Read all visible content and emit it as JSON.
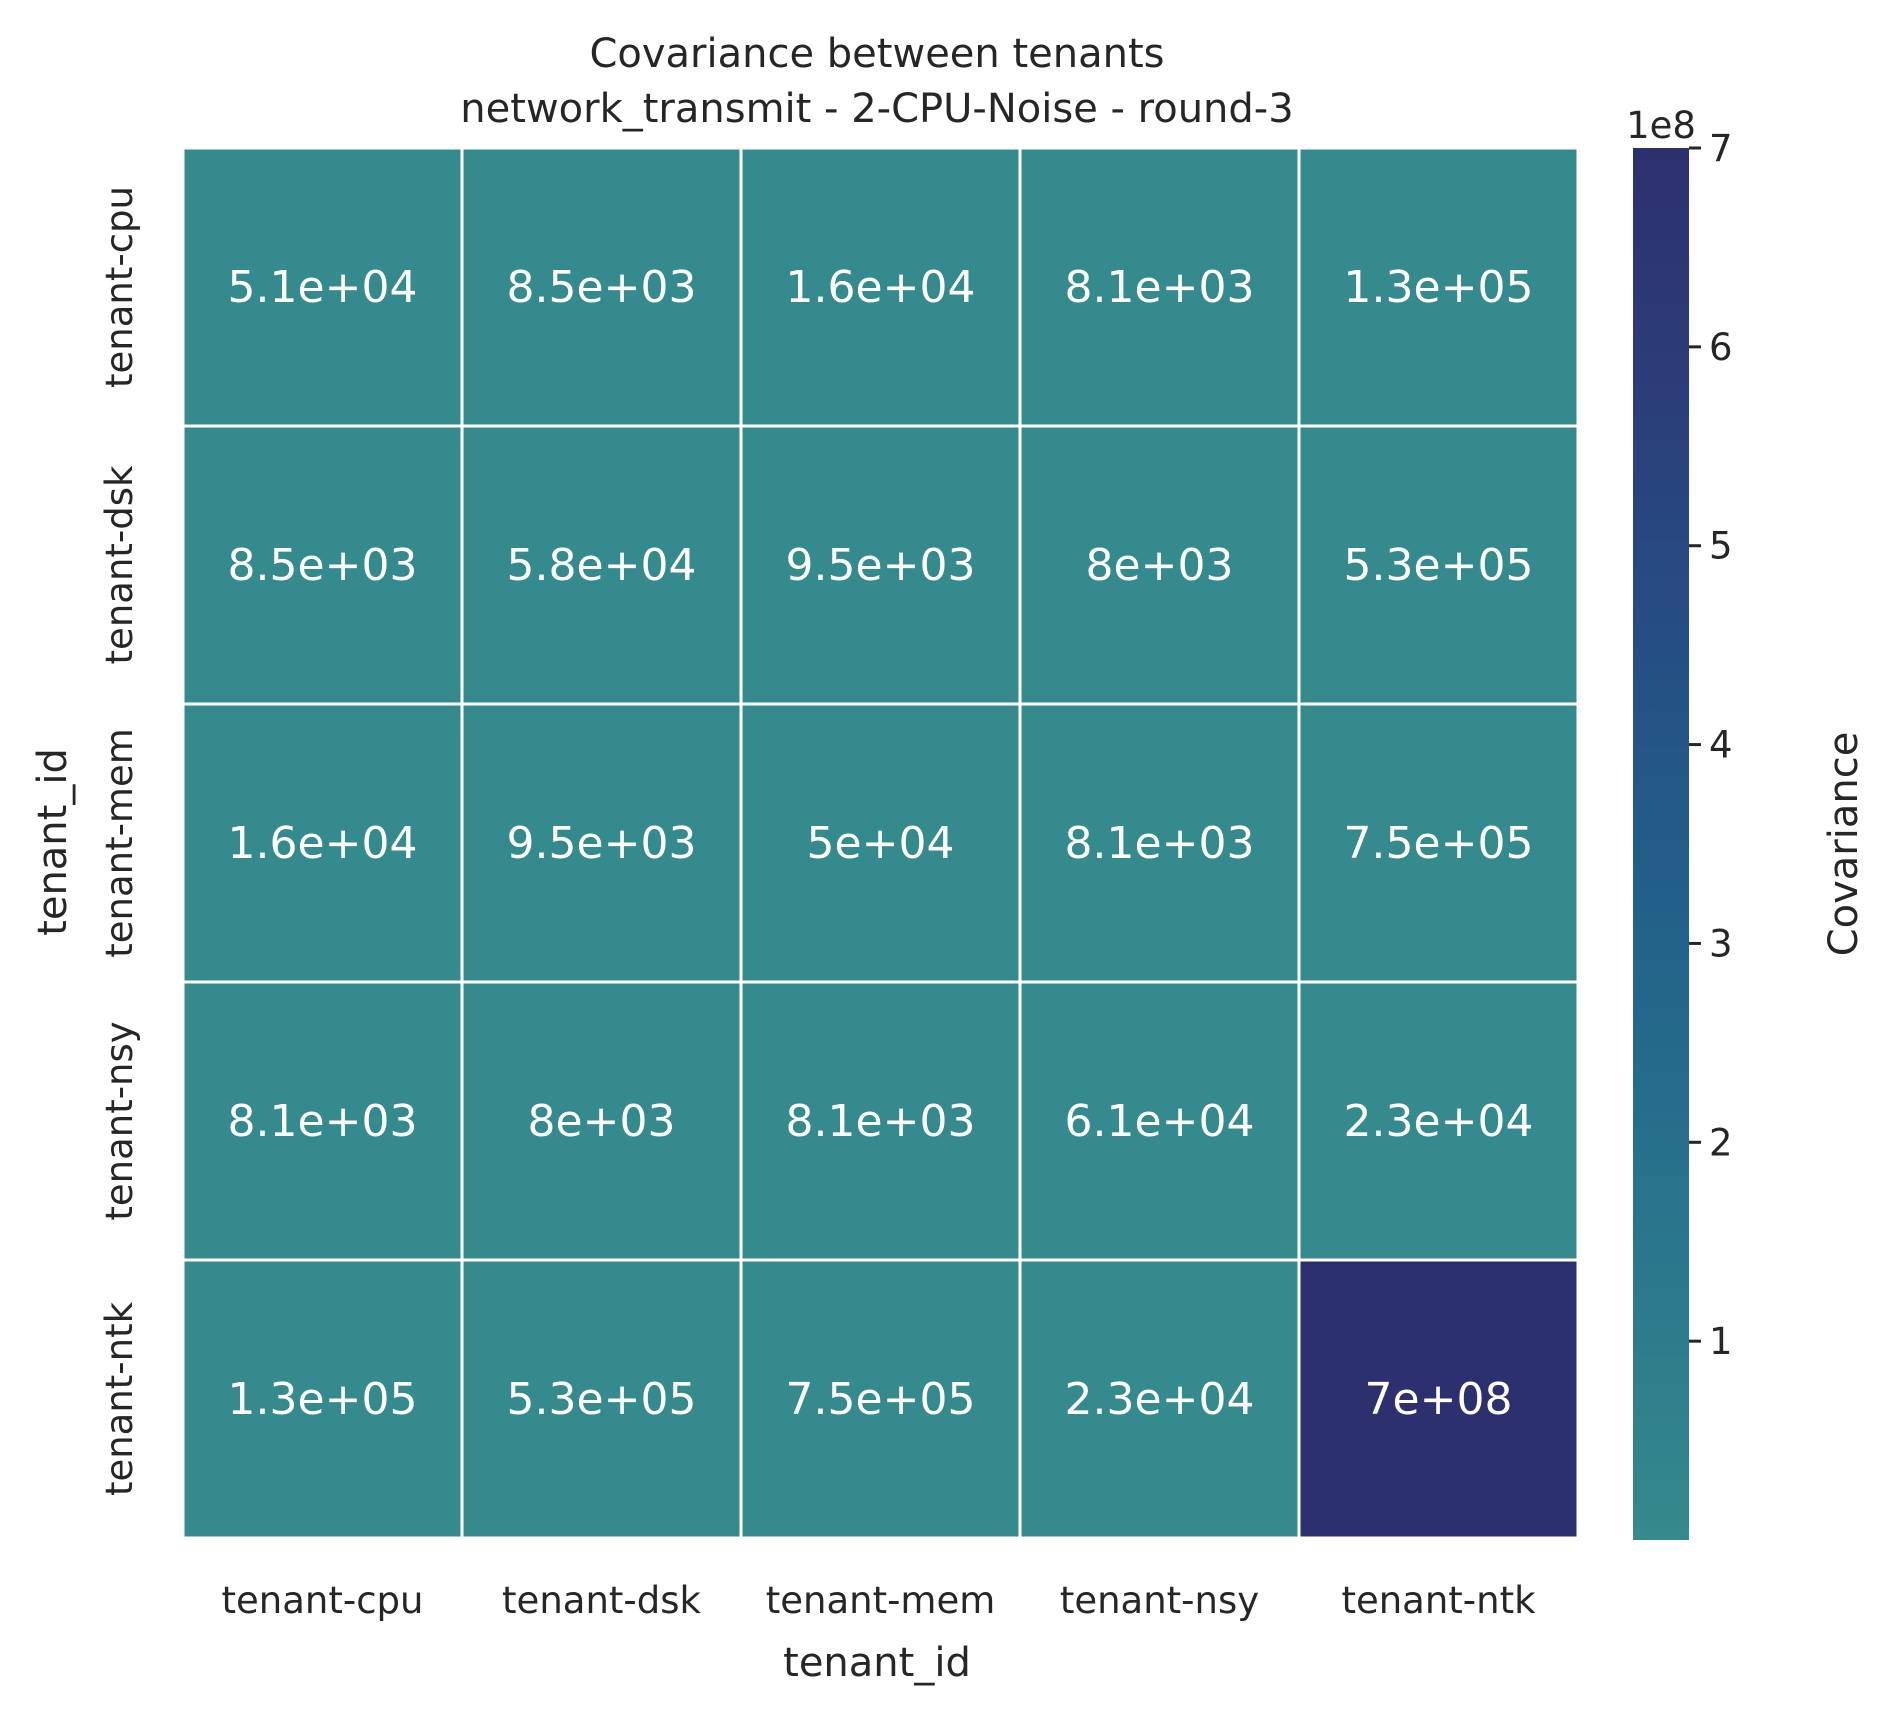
{
  "chart_data": {
    "type": "heatmap",
    "title": "Covariance between tenants",
    "subtitle": "network_transmit - 2-CPU-Noise - round-3",
    "xlabel": "tenant_id",
    "ylabel": "tenant_id",
    "x_categories": [
      "tenant-cpu",
      "tenant-dsk",
      "tenant-mem",
      "tenant-nsy",
      "tenant-ntk"
    ],
    "y_categories": [
      "tenant-cpu",
      "tenant-dsk",
      "tenant-mem",
      "tenant-nsy",
      "tenant-ntk"
    ],
    "values": [
      [
        51000,
        8500,
        16000,
        8100,
        130000
      ],
      [
        8500,
        58000,
        9500,
        8000,
        530000
      ],
      [
        16000,
        9500,
        50000,
        8100,
        750000
      ],
      [
        8100,
        8000,
        8100,
        61000,
        23000
      ],
      [
        130000,
        530000,
        750000,
        23000,
        700000000
      ]
    ],
    "annotations": [
      [
        "5.1e+04",
        "8.5e+03",
        "1.6e+04",
        "8.1e+03",
        "1.3e+05"
      ],
      [
        "8.5e+03",
        "5.8e+04",
        "9.5e+03",
        "8e+03",
        "5.3e+05"
      ],
      [
        "1.6e+04",
        "9.5e+03",
        "5e+04",
        "8.1e+03",
        "7.5e+05"
      ],
      [
        "8.1e+03",
        "8e+03",
        "8.1e+03",
        "6.1e+04",
        "2.3e+04"
      ],
      [
        "1.3e+05",
        "5.3e+05",
        "7.5e+05",
        "2.3e+04",
        "7e+08"
      ]
    ],
    "colorbar": {
      "label": "Covariance",
      "offset_label": "1e8",
      "scale": 100000000,
      "vmin": 8000,
      "vmax": 700000000,
      "ticks": [
        1,
        2,
        3,
        4,
        5,
        6,
        7
      ],
      "tick_labels": [
        "1",
        "2",
        "3",
        "4",
        "5",
        "6",
        "7"
      ],
      "colormap_stops": [
        "#348a8c",
        "#2c7a8c",
        "#256b8b",
        "#225c88",
        "#264c83",
        "#2b3d78",
        "#2d306e"
      ]
    },
    "grid": false
  }
}
